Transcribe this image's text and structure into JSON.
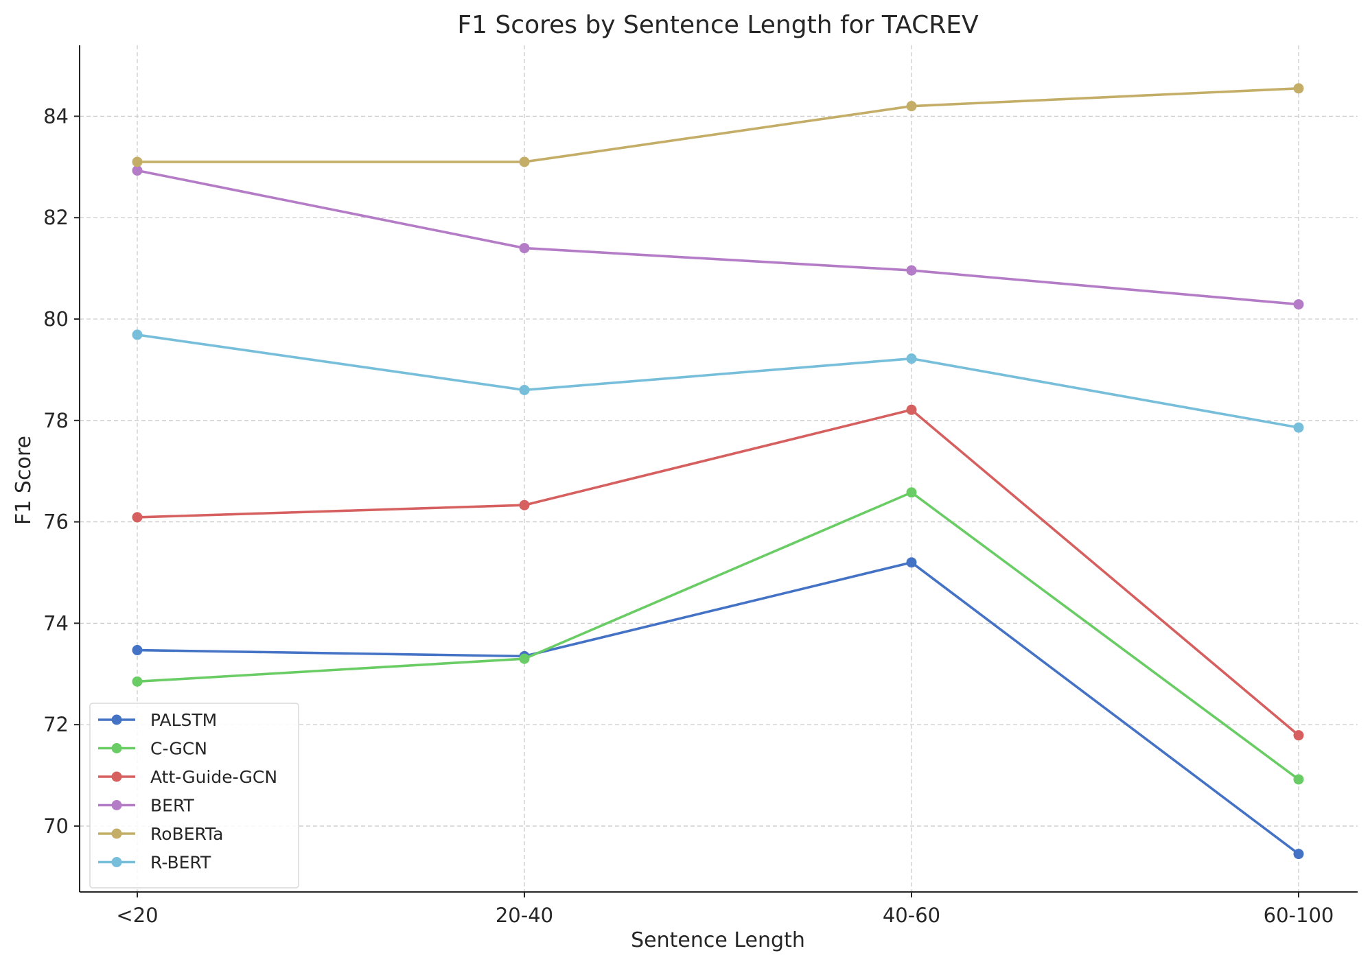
{
  "chart_data": {
    "type": "line",
    "title": "F1 Scores by Sentence Length for TACREV",
    "xlabel": "Sentence Length",
    "ylabel": "F1 Score",
    "categories": [
      "<20",
      "20-40",
      "40-60",
      "60-100"
    ],
    "ylim": [
      68.7,
      85.4
    ],
    "yticks": [
      70,
      72,
      74,
      76,
      78,
      80,
      82,
      84
    ],
    "grid": true,
    "legend_position": "lower-left",
    "series": [
      {
        "name": "PALSTM",
        "color": "#4472c4",
        "values": [
          73.47,
          73.35,
          75.2,
          69.45
        ]
      },
      {
        "name": "C-GCN",
        "color": "#6acc64",
        "values": [
          72.85,
          73.3,
          76.58,
          70.92
        ]
      },
      {
        "name": "Att-Guide-GCN",
        "color": "#d65f5f",
        "values": [
          76.09,
          76.33,
          78.21,
          71.79
        ]
      },
      {
        "name": "BERT",
        "color": "#b47cc7",
        "values": [
          82.93,
          81.4,
          80.96,
          80.29
        ]
      },
      {
        "name": "RoBERTa",
        "color": "#c4ad66",
        "values": [
          83.1,
          83.1,
          84.2,
          84.55
        ]
      },
      {
        "name": "R-BERT",
        "color": "#77bedb",
        "values": [
          79.69,
          78.6,
          79.22,
          77.86
        ]
      }
    ]
  }
}
